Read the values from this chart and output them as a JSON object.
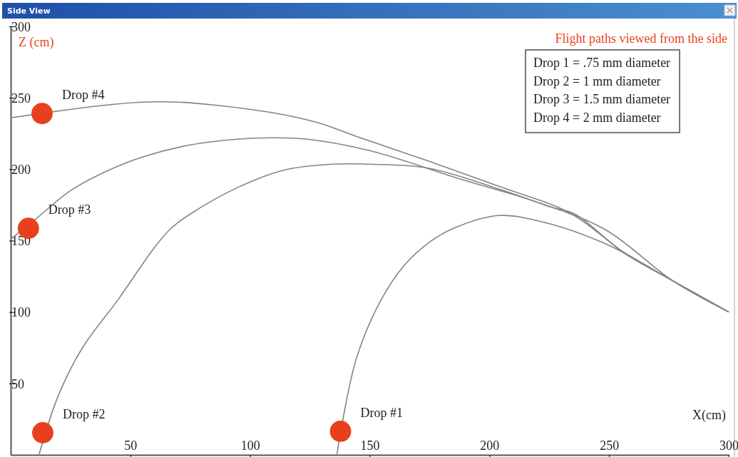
{
  "chart_data": {
    "type": "line",
    "title": "Side View",
    "subtitle": "Flight paths viewed from the side",
    "xlabel": "X(cm)",
    "ylabel": "Z (cm)",
    "xlim": [
      0,
      300
    ],
    "ylim": [
      0,
      300
    ],
    "xticks": [
      50,
      100,
      150,
      200,
      250,
      300
    ],
    "yticks": [
      50,
      100,
      150,
      200,
      250,
      300
    ],
    "grid": false,
    "marker": "none",
    "line_style": "solid",
    "series": [
      {
        "color": "#8a8283",
        "x": [
          136.3,
          144.3,
          154.5,
          164.6,
          174.7,
          185,
          204,
          225.6,
          246,
          256,
          276.5,
          300
        ],
        "values": [
          0.5,
          66.8,
          107.7,
          133,
          148.6,
          158.6,
          167.6,
          161.6,
          149.6,
          141.6,
          122,
          100
        ]
      },
      {
        "color": "#8a8283",
        "x": [
          11.9,
          20,
          30,
          45,
          60,
          67,
          75,
          94.6,
          114.6,
          134.5,
          150,
          174.7,
          205,
          225.6,
          235.7,
          256,
          276.5,
          300
        ],
        "values": [
          0.5,
          42,
          75,
          109,
          145,
          158.6,
          168.6,
          187,
          199.5,
          203.5,
          203.5,
          200.7,
          185.5,
          173.6,
          168.6,
          141.6,
          122,
          100
        ]
      },
      {
        "color": "#8a8283",
        "x": [
          0,
          10.4,
          25,
          40,
          55,
          75,
          94.6,
          109.5,
          124,
          150,
          189,
          219,
          248.5,
          276.5,
          300
        ],
        "values": [
          151,
          165,
          185,
          198.5,
          208.5,
          217,
          221,
          222,
          221,
          213,
          192.5,
          177.5,
          157.6,
          122,
          100
        ]
      },
      {
        "color": "#8a8283",
        "x": [
          0,
          25.3,
          40.2,
          55.1,
          69.9,
          84.8,
          99.7,
          114.6,
          129.5,
          144.3,
          174,
          204,
          234,
          256,
          276.5,
          300
        ],
        "values": [
          236,
          242,
          245,
          247,
          247,
          245,
          242,
          238,
          232,
          223,
          206,
          188,
          169,
          142,
          122,
          100
        ]
      },
      {
        "type": "scatter",
        "marker": "circle",
        "color": "#e8401c",
        "x": [
          137.8,
          13.4,
          7.4,
          13.1
        ],
        "values": [
          16.5,
          15.5,
          158.6,
          239
        ]
      }
    ],
    "annotations": [
      {
        "text": "Drop #1",
        "x": 137.8,
        "y": 16.5
      },
      {
        "text": "Drop #2",
        "x": 13.4,
        "y": 15.5
      },
      {
        "text": "Drop #3",
        "x": 7.4,
        "y": 158.6
      },
      {
        "text": "Drop #4",
        "x": 13.1,
        "y": 239
      },
      "Drop 1 = .75 mm diameter",
      "Drop 2 = 1 mm diameter",
      "Drop 3 = 1.5 mm diameter",
      "Drop 4 = 2 mm diameter"
    ]
  }
}
